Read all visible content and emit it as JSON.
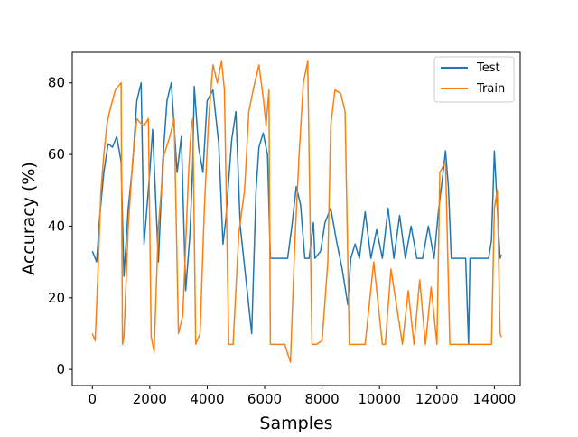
{
  "chart_data": {
    "type": "line",
    "title": "",
    "xlabel": "Samples",
    "ylabel": "Accuracy (%)",
    "xlim": [
      -700,
      14900
    ],
    "ylim": [
      -4.5,
      88.5
    ],
    "xticks": [
      0,
      2000,
      4000,
      6000,
      8000,
      10000,
      12000,
      14000
    ],
    "yticks": [
      0,
      20,
      40,
      60,
      80
    ],
    "xtick_labels": [
      "0",
      "2000",
      "4000",
      "6000",
      "8000",
      "10000",
      "12000",
      "14000"
    ],
    "ytick_labels": [
      "0",
      "20",
      "40",
      "60",
      "80"
    ],
    "grid": false,
    "legend_position": "top-right",
    "legend": [
      "Test",
      "Train"
    ],
    "series": [
      {
        "name": "Test",
        "color": "#1f77b4",
        "x": [
          0,
          150,
          250,
          400,
          550,
          700,
          850,
          1000,
          1100,
          1250,
          1400,
          1550,
          1700,
          1800,
          2000,
          2100,
          2300,
          2450,
          2600,
          2750,
          2950,
          3100,
          3250,
          3400,
          3500,
          3550,
          3700,
          3850,
          4000,
          4200,
          4400,
          4550,
          4650,
          4850,
          5000,
          5150,
          5350,
          5550,
          5700,
          5800,
          5950,
          6100,
          6200,
          6250,
          6500,
          6800,
          6950,
          7100,
          7250,
          7400,
          7550,
          7700,
          7750,
          7950,
          8100,
          8300,
          8500,
          8700,
          8900,
          9000,
          9150,
          9300,
          9500,
          9700,
          9900,
          10100,
          10300,
          10500,
          10700,
          10900,
          11100,
          11300,
          11500,
          11700,
          11900,
          12050,
          12200,
          12300,
          12400,
          12500,
          12700,
          13000,
          13100,
          13150,
          13300,
          13500,
          13700,
          13800,
          13900,
          14000,
          14100,
          14200,
          14250
        ],
        "y": [
          33,
          30,
          42,
          55,
          63,
          62,
          65,
          58,
          26,
          45,
          57,
          75,
          80,
          35,
          55,
          67,
          30,
          58,
          75,
          80,
          55,
          65,
          22,
          38,
          58,
          79,
          62,
          55,
          75,
          78,
          63,
          35,
          42,
          64,
          72,
          40,
          25,
          10,
          50,
          62,
          66,
          60,
          31,
          31,
          31,
          31,
          40,
          51,
          46,
          31,
          31,
          41,
          31,
          33,
          41,
          45,
          36,
          28,
          18,
          31,
          35,
          31,
          44,
          31,
          39,
          31,
          45,
          31,
          43,
          31,
          40,
          31,
          31,
          40,
          31,
          44,
          54,
          61,
          51,
          31,
          31,
          31,
          7,
          31,
          31,
          31,
          31,
          31,
          36,
          61,
          45,
          31,
          32
        ]
      },
      {
        "name": "Train",
        "color": "#ff7f0e",
        "x": [
          0,
          100,
          200,
          300,
          400,
          500,
          600,
          700,
          800,
          900,
          1000,
          1050,
          1100,
          1250,
          1400,
          1550,
          1650,
          1800,
          1950,
          2050,
          2150,
          2300,
          2500,
          2700,
          2850,
          3000,
          3150,
          3350,
          3450,
          3500,
          3600,
          3750,
          3900,
          4050,
          4200,
          4350,
          4500,
          4600,
          4750,
          4850,
          4900,
          5100,
          5300,
          5450,
          5600,
          5800,
          5950,
          6050,
          6150,
          6200,
          6250,
          6450,
          6700,
          6900,
          7050,
          7200,
          7350,
          7500,
          7650,
          7750,
          7800,
          8000,
          8200,
          8300,
          8450,
          8650,
          8800,
          8950,
          9000,
          9100,
          9200,
          9500,
          9800,
          10100,
          10200,
          10400,
          10800,
          11000,
          11200,
          11400,
          11600,
          11800,
          12000,
          12100,
          12300,
          12450,
          12500,
          12700,
          13000,
          13200,
          13500,
          13600,
          13900,
          14000,
          14100,
          14200,
          14250
        ],
        "y": [
          10,
          8,
          28,
          50,
          60,
          68,
          72,
          75,
          78,
          79,
          80,
          7,
          9,
          40,
          58,
          70,
          69,
          68,
          70,
          9,
          5,
          40,
          60,
          65,
          70,
          10,
          15,
          55,
          68,
          70,
          7,
          10,
          45,
          70,
          85,
          80,
          86,
          78,
          7,
          7,
          7,
          38,
          50,
          72,
          78,
          85,
          76,
          68,
          78,
          7,
          7,
          7,
          7,
          2,
          35,
          60,
          80,
          86,
          7,
          7,
          7,
          8,
          30,
          68,
          78,
          77,
          72,
          7,
          7,
          7,
          7,
          7,
          30,
          7,
          7,
          28,
          7,
          22,
          7,
          25,
          7,
          23,
          7,
          55,
          58,
          7,
          7,
          7,
          7,
          7,
          7,
          7,
          7,
          45,
          50,
          10,
          9
        ]
      }
    ]
  }
}
